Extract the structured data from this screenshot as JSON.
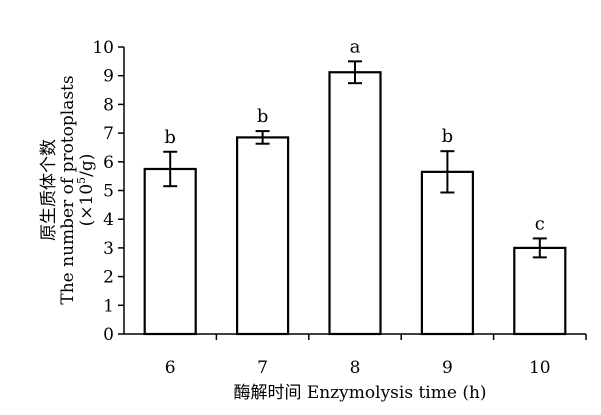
{
  "chart_data": {
    "type": "bar",
    "title": "",
    "xlabel": "酶解时间 Enzymolysis time (h)",
    "ylabel": {
      "line1": "原生质体个数",
      "line2": "The number of protoplasts",
      "line3_prefix": "(×10",
      "line3_sup": "5",
      "line3_suffix": "/g)"
    },
    "categories": [
      "6",
      "7",
      "8",
      "9",
      "10"
    ],
    "values": [
      5.75,
      6.85,
      9.12,
      5.65,
      3.0
    ],
    "errors": [
      0.6,
      0.22,
      0.38,
      0.72,
      0.33
    ],
    "significance": [
      "b",
      "b",
      "a",
      "b",
      "c"
    ],
    "ylim": [
      0,
      10
    ],
    "yticks": [
      "0",
      "1",
      "2",
      "3",
      "4",
      "5",
      "6",
      "7",
      "8",
      "9",
      "10"
    ],
    "grid": false,
    "legend": "none",
    "colors": {
      "bar_fill": "#ffffff",
      "stroke": "#000000"
    }
  }
}
